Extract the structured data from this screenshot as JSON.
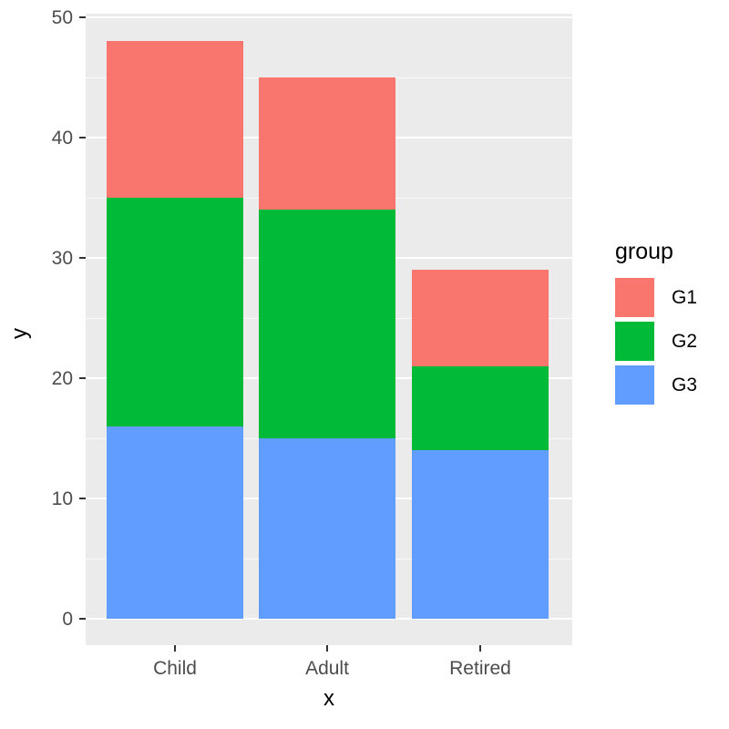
{
  "chart_data": {
    "type": "bar",
    "stacked": true,
    "title": "",
    "xlabel": "x",
    "ylabel": "y",
    "categories": [
      "Child",
      "Adult",
      "Retired"
    ],
    "series": [
      {
        "name": "G1",
        "color": "#F8766D",
        "values": [
          13,
          11,
          8
        ]
      },
      {
        "name": "G2",
        "color": "#00BA38",
        "values": [
          19,
          19,
          7
        ]
      },
      {
        "name": "G3",
        "color": "#619CFF",
        "values": [
          16,
          15,
          14
        ]
      }
    ],
    "stack_totals": [
      48,
      45,
      29
    ],
    "ylim": [
      0,
      50
    ],
    "yticks": [
      0,
      10,
      20,
      30,
      40,
      50
    ],
    "yticks_minor": [
      5,
      15,
      25,
      35,
      45
    ],
    "legend": {
      "title": "group",
      "position": "right"
    },
    "grid": true,
    "panel_bg": "#EBEBEB",
    "grid_color": "#FFFFFF",
    "axis_text_color": "#4D4D4D"
  }
}
